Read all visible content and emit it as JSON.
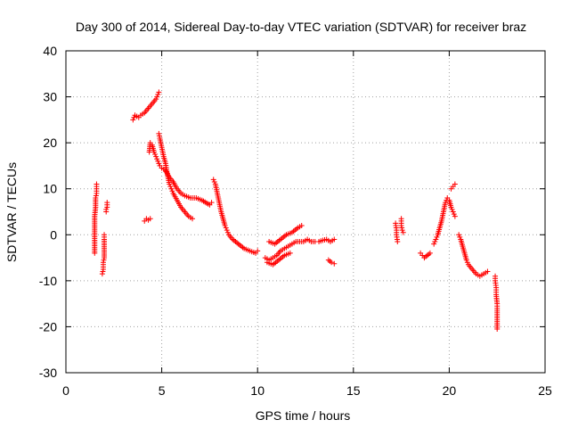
{
  "chart_data": {
    "type": "scatter",
    "title": "Day 300 of 2014, Sidereal Day-to-day VTEC variation (SDTVAR) for receiver braz",
    "xlabel": "GPS time / hours",
    "ylabel": "SDTVAR / TECUs",
    "xlim": [
      0,
      25
    ],
    "ylim": [
      -30,
      40
    ],
    "xticks": [
      0,
      5,
      10,
      15,
      20,
      25
    ],
    "yticks": [
      -30,
      -20,
      -10,
      0,
      10,
      20,
      30,
      40
    ],
    "xtick_labels": [
      "0",
      "5",
      "10",
      "15",
      "20",
      "25"
    ],
    "ytick_labels": [
      "-30",
      "-20",
      "-10",
      "0",
      "10",
      "20",
      "30",
      "40"
    ],
    "grid": true,
    "marker": "+",
    "color": "#ff0000",
    "series": [
      {
        "name": "SDTVAR",
        "segments": [
          [
            [
              1.5,
              -4
            ],
            [
              1.5,
              -2
            ],
            [
              1.5,
              0
            ],
            [
              1.5,
              2
            ],
            [
              1.5,
              4
            ],
            [
              1.55,
              6
            ],
            [
              1.55,
              8
            ],
            [
              1.6,
              9
            ],
            [
              1.6,
              10
            ],
            [
              1.6,
              11
            ]
          ],
          [
            [
              1.9,
              -8.5
            ],
            [
              1.95,
              -7.5
            ],
            [
              1.95,
              -6
            ],
            [
              2.0,
              -5
            ],
            [
              2.0,
              -3
            ],
            [
              2.0,
              -1
            ],
            [
              2.0,
              0
            ]
          ],
          [
            [
              2.1,
              5
            ],
            [
              2.1,
              5.5
            ],
            [
              2.15,
              6
            ],
            [
              2.15,
              7
            ]
          ],
          [
            [
              3.5,
              25
            ],
            [
              3.6,
              26
            ],
            [
              3.8,
              25.5
            ],
            [
              3.9,
              26
            ],
            [
              4.1,
              26.5
            ],
            [
              4.3,
              27.5
            ],
            [
              4.5,
              28.5
            ],
            [
              4.7,
              29.5
            ],
            [
              4.8,
              30.5
            ],
            [
              4.85,
              31
            ]
          ],
          [
            [
              4.1,
              3
            ],
            [
              4.2,
              3.5
            ],
            [
              4.3,
              3.2
            ],
            [
              4.4,
              3.5
            ]
          ],
          [
            [
              4.35,
              18
            ],
            [
              4.4,
              20
            ],
            [
              4.5,
              19.5
            ],
            [
              4.6,
              18
            ],
            [
              4.7,
              17
            ],
            [
              4.8,
              16
            ],
            [
              4.9,
              15
            ],
            [
              5.0,
              14.5
            ],
            [
              5.2,
              14
            ],
            [
              5.4,
              12.5
            ],
            [
              5.6,
              11.5
            ],
            [
              5.8,
              10
            ],
            [
              6.0,
              9
            ],
            [
              6.2,
              8.5
            ],
            [
              6.5,
              8
            ],
            [
              6.8,
              8
            ],
            [
              7.1,
              7.5
            ],
            [
              7.5,
              6.5
            ],
            [
              7.6,
              7
            ]
          ],
          [
            [
              4.85,
              22
            ],
            [
              4.9,
              21
            ],
            [
              5.0,
              19
            ],
            [
              5.1,
              17
            ],
            [
              5.2,
              15.5
            ],
            [
              5.3,
              13
            ],
            [
              5.4,
              11
            ],
            [
              5.5,
              10
            ],
            [
              5.6,
              9
            ],
            [
              5.8,
              7.5
            ],
            [
              6.0,
              6
            ],
            [
              6.2,
              5
            ],
            [
              6.4,
              4
            ],
            [
              6.6,
              3.5
            ]
          ],
          [
            [
              7.7,
              12
            ],
            [
              7.8,
              11
            ],
            [
              7.9,
              9
            ],
            [
              8.0,
              7
            ],
            [
              8.1,
              5
            ],
            [
              8.2,
              3.5
            ],
            [
              8.3,
              2
            ],
            [
              8.4,
              1
            ],
            [
              8.5,
              0
            ],
            [
              8.7,
              -1
            ],
            [
              9.0,
              -2
            ],
            [
              9.3,
              -3
            ],
            [
              9.6,
              -3.5
            ],
            [
              9.9,
              -4
            ],
            [
              10.0,
              -3.5
            ]
          ],
          [
            [
              10.4,
              -5
            ],
            [
              10.6,
              -5.5
            ],
            [
              10.8,
              -5
            ],
            [
              11.0,
              -4.5
            ],
            [
              11.2,
              -3.5
            ],
            [
              11.4,
              -3
            ],
            [
              11.6,
              -2.5
            ],
            [
              11.8,
              -2
            ],
            [
              12.0,
              -1.5
            ],
            [
              12.2,
              -1.5
            ],
            [
              12.4,
              -1.5
            ],
            [
              12.6,
              -1
            ],
            [
              12.8,
              -1.5
            ],
            [
              13.0,
              -1.5
            ]
          ],
          [
            [
              10.6,
              -1.5
            ],
            [
              10.9,
              -2
            ],
            [
              11.2,
              -1
            ],
            [
              11.5,
              0
            ],
            [
              11.8,
              0.5
            ],
            [
              12.1,
              1.5
            ],
            [
              12.3,
              2
            ]
          ],
          [
            [
              10.5,
              -6
            ],
            [
              10.8,
              -6.5
            ],
            [
              11.1,
              -5.5
            ],
            [
              11.4,
              -4.5
            ],
            [
              11.7,
              -4
            ]
          ],
          [
            [
              13.2,
              -1.5
            ],
            [
              13.4,
              -1.2
            ],
            [
              13.6,
              -1
            ],
            [
              13.8,
              -1.5
            ],
            [
              14.0,
              -1
            ]
          ],
          [
            [
              13.7,
              -5.5
            ],
            [
              13.85,
              -6
            ],
            [
              14.0,
              -6.3
            ]
          ],
          [
            [
              17.2,
              2.5
            ],
            [
              17.25,
              1
            ],
            [
              17.25,
              0
            ],
            [
              17.3,
              -1.5
            ]
          ],
          [
            [
              17.5,
              3.5
            ],
            [
              17.5,
              2
            ],
            [
              17.55,
              1
            ],
            [
              17.6,
              0.5
            ]
          ],
          [
            [
              18.5,
              -4
            ],
            [
              18.6,
              -4.5
            ],
            [
              18.7,
              -5
            ],
            [
              19.0,
              -4
            ]
          ],
          [
            [
              19.2,
              -2
            ],
            [
              19.3,
              -1
            ],
            [
              19.4,
              0
            ],
            [
              19.5,
              1.5
            ],
            [
              19.6,
              3
            ],
            [
              19.7,
              5
            ],
            [
              19.8,
              7
            ],
            [
              19.9,
              8
            ],
            [
              20.0,
              7.5
            ],
            [
              20.1,
              6
            ],
            [
              20.2,
              5
            ],
            [
              20.3,
              4
            ]
          ],
          [
            [
              20.1,
              10
            ],
            [
              20.2,
              10.5
            ],
            [
              20.3,
              11
            ]
          ],
          [
            [
              20.5,
              0
            ],
            [
              20.6,
              -1
            ],
            [
              20.7,
              -2.5
            ],
            [
              20.8,
              -4
            ],
            [
              20.9,
              -5.5
            ],
            [
              21.0,
              -6.5
            ],
            [
              21.2,
              -7.5
            ],
            [
              21.4,
              -8.5
            ],
            [
              21.6,
              -9
            ],
            [
              21.8,
              -8.5
            ],
            [
              22.0,
              -8
            ]
          ],
          [
            [
              22.4,
              -9
            ],
            [
              22.4,
              -10
            ],
            [
              22.45,
              -11.5
            ],
            [
              22.45,
              -13
            ],
            [
              22.5,
              -15
            ],
            [
              22.5,
              -16
            ],
            [
              22.5,
              -18.5
            ],
            [
              22.5,
              -20.5
            ]
          ]
        ]
      }
    ]
  }
}
